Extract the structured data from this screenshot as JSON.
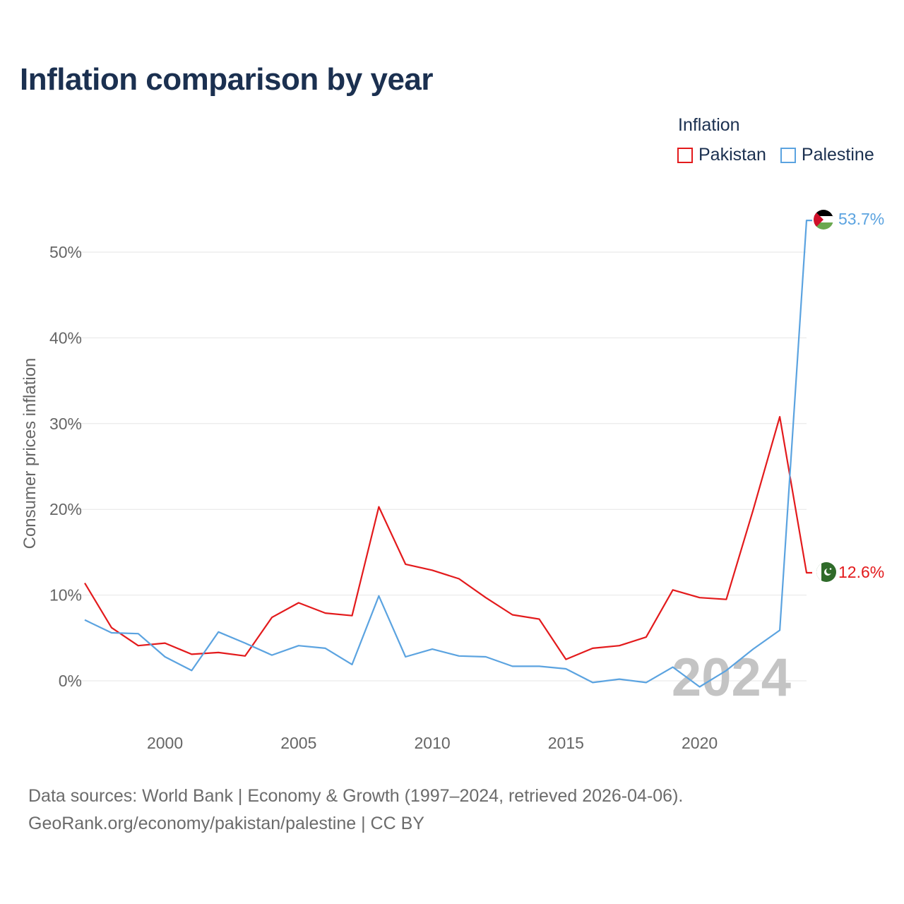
{
  "title": "Inflation comparison by year",
  "legend": {
    "title": "Inflation",
    "items": [
      {
        "name": "Pakistan",
        "color": "#e31a1c"
      },
      {
        "name": "Palestine",
        "color": "#5ba3e0"
      }
    ]
  },
  "footer": {
    "line1": "Data sources: World Bank | Economy & Growth (1997–2024, retrieved 2026-04-06).",
    "line2": "GeoRank.org/economy/pakistan/palestine | CC BY"
  },
  "chart_data": {
    "type": "line",
    "title": "Inflation comparison by year",
    "xlabel": "",
    "ylabel": "Consumer prices inflation",
    "xlim": [
      1997,
      2024
    ],
    "ylim": [
      -4,
      56
    ],
    "x_ticks": [
      2000,
      2005,
      2010,
      2015,
      2020
    ],
    "y_ticks": [
      0,
      10,
      20,
      30,
      40,
      50
    ],
    "y_tick_labels": [
      "0%",
      "10%",
      "20%",
      "30%",
      "40%",
      "50%"
    ],
    "grid": true,
    "watermark_year": "2024",
    "x": [
      1997,
      1998,
      1999,
      2000,
      2001,
      2002,
      2003,
      2004,
      2005,
      2006,
      2007,
      2008,
      2009,
      2010,
      2011,
      2012,
      2013,
      2014,
      2015,
      2016,
      2017,
      2018,
      2019,
      2020,
      2021,
      2022,
      2023,
      2024
    ],
    "series": [
      {
        "name": "Pakistan",
        "color": "#e31a1c",
        "end_label": "12.6%",
        "values": [
          11.4,
          6.2,
          4.1,
          4.4,
          3.1,
          3.3,
          2.9,
          7.4,
          9.1,
          7.9,
          7.6,
          20.3,
          13.6,
          12.9,
          11.9,
          9.7,
          7.7,
          7.2,
          2.5,
          3.8,
          4.1,
          5.1,
          10.6,
          9.7,
          9.5,
          19.9,
          30.8,
          12.6
        ]
      },
      {
        "name": "Palestine",
        "color": "#5ba3e0",
        "end_label": "53.7%",
        "values": [
          7.1,
          5.6,
          5.5,
          2.8,
          1.2,
          5.7,
          4.4,
          3.0,
          4.1,
          3.8,
          1.9,
          9.9,
          2.8,
          3.7,
          2.9,
          2.8,
          1.7,
          1.7,
          1.4,
          -0.2,
          0.2,
          -0.2,
          1.6,
          -0.7,
          1.2,
          3.7,
          5.9,
          53.7
        ]
      }
    ]
  }
}
